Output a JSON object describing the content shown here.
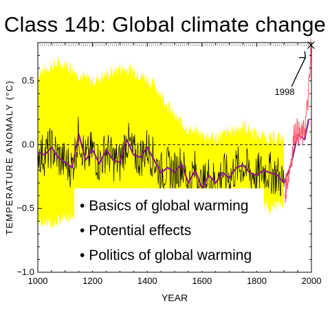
{
  "title": "Class 14b: Global climate change",
  "bullets": [
    "Basics of global warming",
    "Potential effects",
    "Politics of global warming"
  ],
  "colors": {
    "uncertainty_band": "#ffff00",
    "annual_series": "#000000",
    "smoothed_series": "#8b1a8b",
    "instrumental": "#ff6070",
    "reference_line": "#000000"
  },
  "chart_data": {
    "type": "line",
    "title": "",
    "xlabel": "YEAR",
    "ylabel": "TEMPERATURE ANOMALY (°C)",
    "xlim": [
      1000,
      2000
    ],
    "ylim": [
      -1.0,
      0.8
    ],
    "x_ticks": [
      1000,
      1200,
      1400,
      1600,
      1800,
      2000
    ],
    "y_ticks": [
      -1.0,
      -0.5,
      0.0,
      0.5
    ],
    "y_tick_labels": [
      "−1.0",
      "−0.5",
      "0.0",
      "0.5"
    ],
    "zero_line": 0.0,
    "annotation": {
      "text": "1998",
      "x": 1998,
      "y": 0.78
    },
    "series": [
      {
        "kind": "uncertainty",
        "x": [
          1000,
          1050,
          1100,
          1150,
          1200,
          1250,
          1300,
          1350,
          1400,
          1450,
          1500,
          1550,
          1600,
          1650,
          1700,
          1750,
          1800,
          1850,
          1900
        ],
        "upper": [
          0.55,
          0.62,
          0.64,
          0.55,
          0.5,
          0.55,
          0.6,
          0.58,
          0.52,
          0.4,
          0.22,
          0.12,
          0.08,
          0.05,
          0.1,
          0.15,
          0.08,
          0.05,
          0.05
        ],
        "lower": [
          -0.6,
          -0.62,
          -0.58,
          -0.5,
          -0.48,
          -0.5,
          -0.5,
          -0.5,
          -0.48,
          -0.45,
          -0.38,
          -0.4,
          -0.42,
          -0.42,
          -0.4,
          -0.38,
          -0.45,
          -0.5,
          -0.45
        ]
      },
      {
        "kind": "smoothed",
        "x": [
          1000,
          1025,
          1050,
          1075,
          1100,
          1125,
          1150,
          1175,
          1200,
          1225,
          1250,
          1275,
          1300,
          1325,
          1350,
          1375,
          1400,
          1425,
          1450,
          1475,
          1500,
          1525,
          1550,
          1575,
          1600,
          1625,
          1650,
          1675,
          1700,
          1725,
          1750,
          1775,
          1800,
          1825,
          1850,
          1875,
          1900,
          1925,
          1950,
          1975,
          1990
        ],
        "y": [
          -0.06,
          -0.08,
          -0.02,
          -0.1,
          -0.14,
          -0.18,
          0.08,
          -0.12,
          -0.04,
          -0.15,
          -0.04,
          -0.12,
          -0.14,
          0.04,
          -0.08,
          -0.1,
          -0.02,
          -0.12,
          -0.22,
          -0.18,
          -0.22,
          -0.15,
          -0.3,
          -0.2,
          -0.34,
          -0.24,
          -0.3,
          -0.22,
          -0.26,
          -0.18,
          -0.16,
          -0.22,
          -0.24,
          -0.2,
          -0.22,
          -0.24,
          -0.3,
          -0.16,
          0.08,
          0.04,
          0.2
        ]
      },
      {
        "kind": "instrumental",
        "x": [
          1902,
          1910,
          1920,
          1930,
          1940,
          1950,
          1960,
          1970,
          1980,
          1985,
          1990,
          1995,
          1998
        ],
        "y": [
          -0.38,
          -0.3,
          -0.18,
          -0.05,
          0.12,
          0.1,
          0.06,
          0.08,
          0.2,
          0.28,
          0.42,
          0.55,
          0.78
        ]
      }
    ]
  }
}
